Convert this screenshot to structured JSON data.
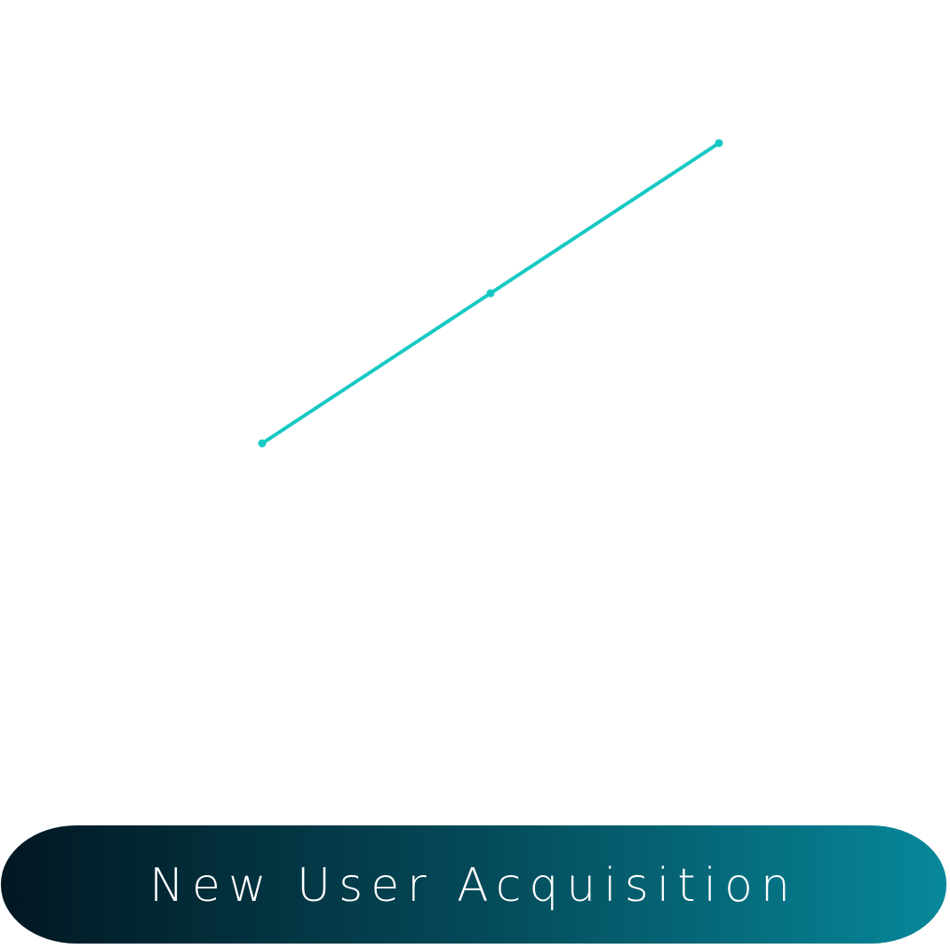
{
  "chart_data": {
    "type": "line",
    "title": "New User Acquisition",
    "categories": [
      null,
      null,
      null
    ],
    "values": [
      1,
      2,
      3
    ],
    "color": "#17c9c3",
    "ylim": [
      0,
      3.9
    ]
  }
}
